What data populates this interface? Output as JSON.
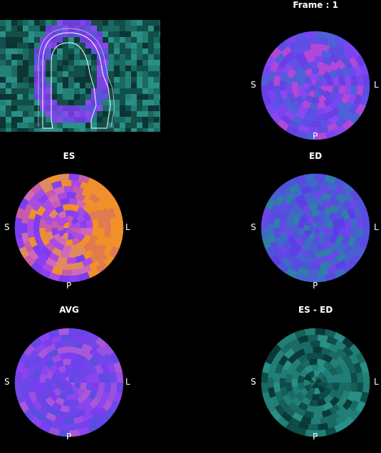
{
  "frame_title": "Frame : 1",
  "panels": [
    {
      "id": "frame",
      "title": "",
      "left": "S",
      "right": "L",
      "bottom": "P",
      "palette": "frame"
    },
    {
      "id": "es",
      "title": "ES",
      "left": "S",
      "right": "L",
      "bottom": "P",
      "palette": "es"
    },
    {
      "id": "ed",
      "title": "ED",
      "left": "S",
      "right": "L",
      "bottom": "P",
      "palette": "ed"
    },
    {
      "id": "avg",
      "title": "AVG",
      "left": "S",
      "right": "L",
      "bottom": "P",
      "palette": "avg"
    },
    {
      "id": "diff",
      "title": "ES - ED",
      "left": "S",
      "right": "L",
      "bottom": "P",
      "palette": "diff"
    }
  ],
  "colors": {
    "background": "#000000",
    "violet": "#7a3df0",
    "blue_violet": "#5b3ee8",
    "magenta": "#c040e0",
    "orange": "#f0902a",
    "teal": "#1f7f78",
    "dark_teal": "#0f4d4a"
  }
}
